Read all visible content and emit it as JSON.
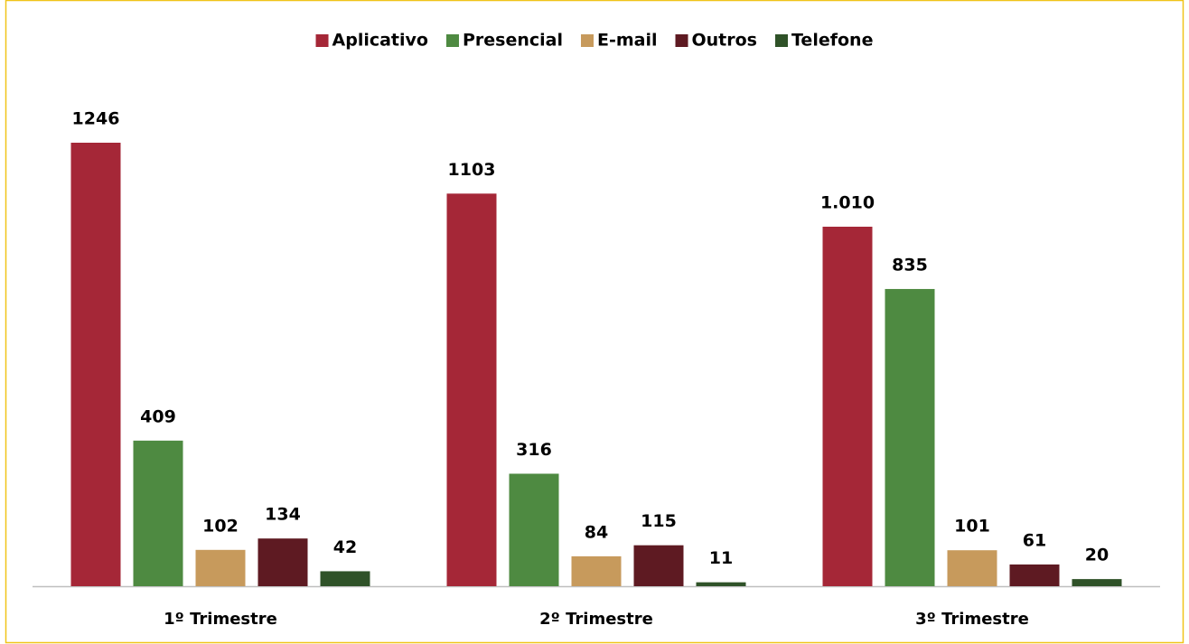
{
  "chart_data": {
    "type": "bar",
    "categories": [
      "1º Trimestre",
      "2º Trimestre",
      "3º Trimestre"
    ],
    "series": [
      {
        "name": "Aplicativo",
        "color": "#a52737",
        "values": [
          1246,
          1103,
          1010
        ],
        "value_labels": [
          "1246",
          "1103",
          "1.010"
        ]
      },
      {
        "name": "Presencial",
        "color": "#4e8a41",
        "values": [
          409,
          316,
          835
        ]
      },
      {
        "name": "E-mail",
        "color": "#c79a5c",
        "values": [
          102,
          84,
          101
        ]
      },
      {
        "name": "Outros",
        "color": "#5e1a22",
        "values": [
          134,
          115,
          61
        ]
      },
      {
        "name": "Telefone",
        "color": "#2f5228",
        "values": [
          42,
          11,
          20
        ]
      }
    ],
    "legend": "top"
  }
}
